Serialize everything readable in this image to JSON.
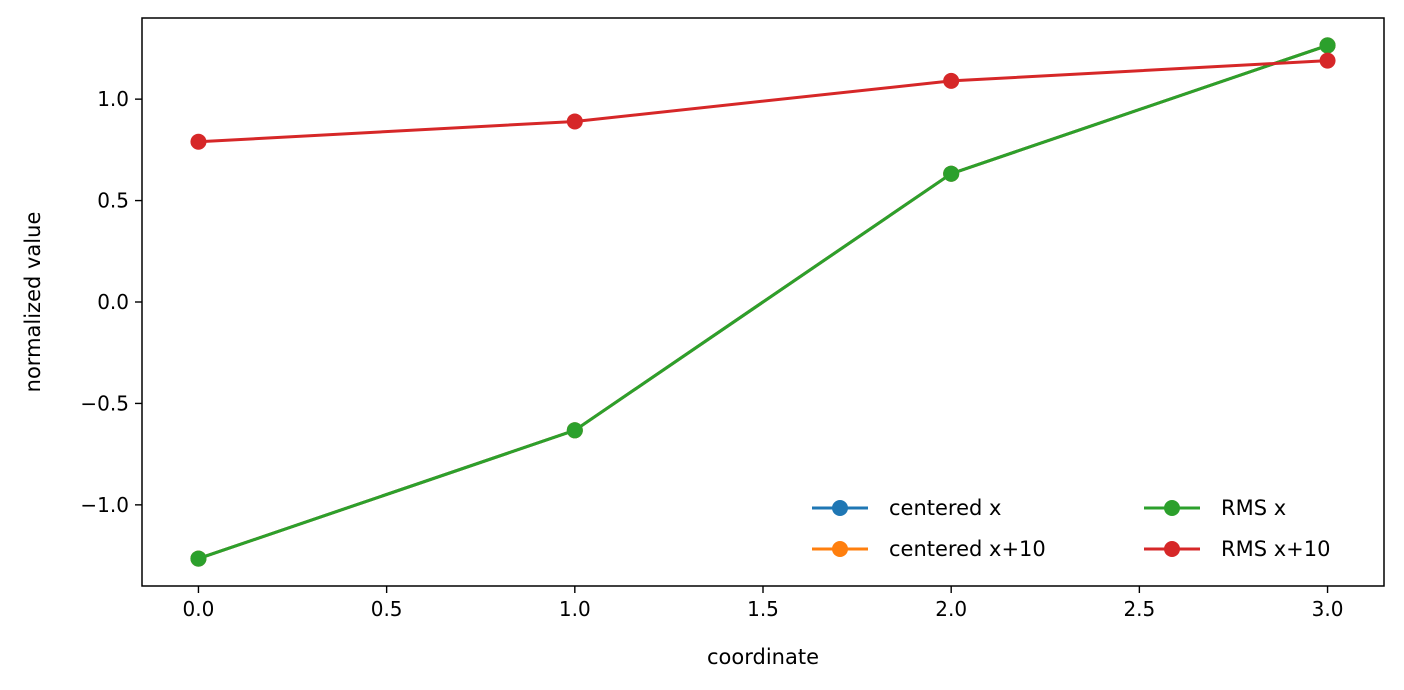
{
  "chart_data": {
    "type": "line",
    "title": "",
    "xlabel": "coordinate",
    "ylabel": "normalized value",
    "xlim": [
      -0.15,
      3.15
    ],
    "ylim": [
      -1.4,
      1.4
    ],
    "grid": false,
    "legend_placement": "lower-right",
    "legend_columns": 2,
    "x": [
      0,
      1,
      2,
      3
    ],
    "x_ticks": [
      0.0,
      0.5,
      1.0,
      1.5,
      2.0,
      2.5,
      3.0
    ],
    "x_tick_labels": [
      "0.0",
      "0.5",
      "1.0",
      "1.5",
      "2.0",
      "2.5",
      "3.0"
    ],
    "y_ticks": [
      -1.0,
      -0.5,
      0.0,
      0.5,
      1.0
    ],
    "y_tick_labels": [
      "−1.0",
      "−0.5",
      "0.0",
      "0.5",
      "1.0"
    ],
    "series": [
      {
        "name": "centered x",
        "color": "#1f77b4",
        "values": [
          -1.2649,
          -0.6325,
          0.6325,
          1.2649
        ]
      },
      {
        "name": "centered x+10",
        "color": "#ff7f0e",
        "values": [
          -1.2649,
          -0.6325,
          0.6325,
          1.2649
        ]
      },
      {
        "name": "RMS x",
        "color": "#2ca02c",
        "values": [
          -1.2649,
          -0.6325,
          0.6325,
          1.2649
        ]
      },
      {
        "name": "RMS x+10",
        "color": "#d62728",
        "values": [
          0.79,
          0.89,
          1.09,
          1.19
        ]
      }
    ]
  }
}
